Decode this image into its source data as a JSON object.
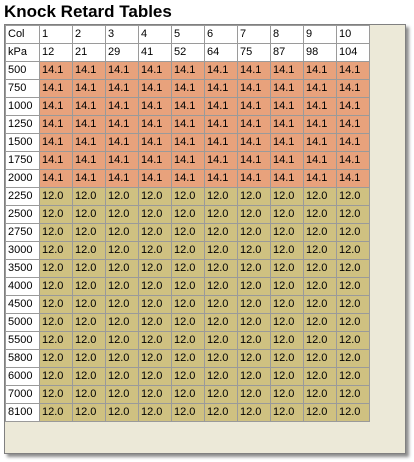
{
  "title": "Knock Retard Tables",
  "colors": {
    "high_cell": "#e8a27c",
    "low_cell": "#cfc181",
    "header_bg": "#ffffff",
    "frame_bg": "#ece9d8"
  },
  "header_rows": [
    {
      "label": "Col",
      "values": [
        "1",
        "2",
        "3",
        "4",
        "5",
        "6",
        "7",
        "8",
        "9",
        "10"
      ]
    },
    {
      "label": "kPa",
      "values": [
        "12",
        "21",
        "29",
        "41",
        "52",
        "64",
        "75",
        "87",
        "98",
        "104"
      ]
    }
  ],
  "rows": [
    {
      "rpm": "500",
      "tone": "high",
      "values": [
        "14.1",
        "14.1",
        "14.1",
        "14.1",
        "14.1",
        "14.1",
        "14.1",
        "14.1",
        "14.1",
        "14.1"
      ]
    },
    {
      "rpm": "750",
      "tone": "high",
      "values": [
        "14.1",
        "14.1",
        "14.1",
        "14.1",
        "14.1",
        "14.1",
        "14.1",
        "14.1",
        "14.1",
        "14.1"
      ]
    },
    {
      "rpm": "1000",
      "tone": "high",
      "values": [
        "14.1",
        "14.1",
        "14.1",
        "14.1",
        "14.1",
        "14.1",
        "14.1",
        "14.1",
        "14.1",
        "14.1"
      ]
    },
    {
      "rpm": "1250",
      "tone": "high",
      "values": [
        "14.1",
        "14.1",
        "14.1",
        "14.1",
        "14.1",
        "14.1",
        "14.1",
        "14.1",
        "14.1",
        "14.1"
      ]
    },
    {
      "rpm": "1500",
      "tone": "high",
      "values": [
        "14.1",
        "14.1",
        "14.1",
        "14.1",
        "14.1",
        "14.1",
        "14.1",
        "14.1",
        "14.1",
        "14.1"
      ]
    },
    {
      "rpm": "1750",
      "tone": "high",
      "values": [
        "14.1",
        "14.1",
        "14.1",
        "14.1",
        "14.1",
        "14.1",
        "14.1",
        "14.1",
        "14.1",
        "14.1"
      ]
    },
    {
      "rpm": "2000",
      "tone": "high",
      "values": [
        "14.1",
        "14.1",
        "14.1",
        "14.1",
        "14.1",
        "14.1",
        "14.1",
        "14.1",
        "14.1",
        "14.1"
      ]
    },
    {
      "rpm": "2250",
      "tone": "low",
      "values": [
        "12.0",
        "12.0",
        "12.0",
        "12.0",
        "12.0",
        "12.0",
        "12.0",
        "12.0",
        "12.0",
        "12.0"
      ]
    },
    {
      "rpm": "2500",
      "tone": "low",
      "values": [
        "12.0",
        "12.0",
        "12.0",
        "12.0",
        "12.0",
        "12.0",
        "12.0",
        "12.0",
        "12.0",
        "12.0"
      ]
    },
    {
      "rpm": "2750",
      "tone": "low",
      "values": [
        "12.0",
        "12.0",
        "12.0",
        "12.0",
        "12.0",
        "12.0",
        "12.0",
        "12.0",
        "12.0",
        "12.0"
      ]
    },
    {
      "rpm": "3000",
      "tone": "low",
      "values": [
        "12.0",
        "12.0",
        "12.0",
        "12.0",
        "12.0",
        "12.0",
        "12.0",
        "12.0",
        "12.0",
        "12.0"
      ]
    },
    {
      "rpm": "3500",
      "tone": "low",
      "values": [
        "12.0",
        "12.0",
        "12.0",
        "12.0",
        "12.0",
        "12.0",
        "12.0",
        "12.0",
        "12.0",
        "12.0"
      ]
    },
    {
      "rpm": "4000",
      "tone": "low",
      "values": [
        "12.0",
        "12.0",
        "12.0",
        "12.0",
        "12.0",
        "12.0",
        "12.0",
        "12.0",
        "12.0",
        "12.0"
      ]
    },
    {
      "rpm": "4500",
      "tone": "low",
      "values": [
        "12.0",
        "12.0",
        "12.0",
        "12.0",
        "12.0",
        "12.0",
        "12.0",
        "12.0",
        "12.0",
        "12.0"
      ]
    },
    {
      "rpm": "5000",
      "tone": "low",
      "values": [
        "12.0",
        "12.0",
        "12.0",
        "12.0",
        "12.0",
        "12.0",
        "12.0",
        "12.0",
        "12.0",
        "12.0"
      ]
    },
    {
      "rpm": "5500",
      "tone": "low",
      "values": [
        "12.0",
        "12.0",
        "12.0",
        "12.0",
        "12.0",
        "12.0",
        "12.0",
        "12.0",
        "12.0",
        "12.0"
      ]
    },
    {
      "rpm": "5800",
      "tone": "low",
      "values": [
        "12.0",
        "12.0",
        "12.0",
        "12.0",
        "12.0",
        "12.0",
        "12.0",
        "12.0",
        "12.0",
        "12.0"
      ]
    },
    {
      "rpm": "6000",
      "tone": "low",
      "values": [
        "12.0",
        "12.0",
        "12.0",
        "12.0",
        "12.0",
        "12.0",
        "12.0",
        "12.0",
        "12.0",
        "12.0"
      ]
    },
    {
      "rpm": "7000",
      "tone": "low",
      "values": [
        "12.0",
        "12.0",
        "12.0",
        "12.0",
        "12.0",
        "12.0",
        "12.0",
        "12.0",
        "12.0",
        "12.0"
      ]
    },
    {
      "rpm": "8100",
      "tone": "low",
      "values": [
        "12.0",
        "12.0",
        "12.0",
        "12.0",
        "12.0",
        "12.0",
        "12.0",
        "12.0",
        "12.0",
        "12.0"
      ]
    }
  ]
}
